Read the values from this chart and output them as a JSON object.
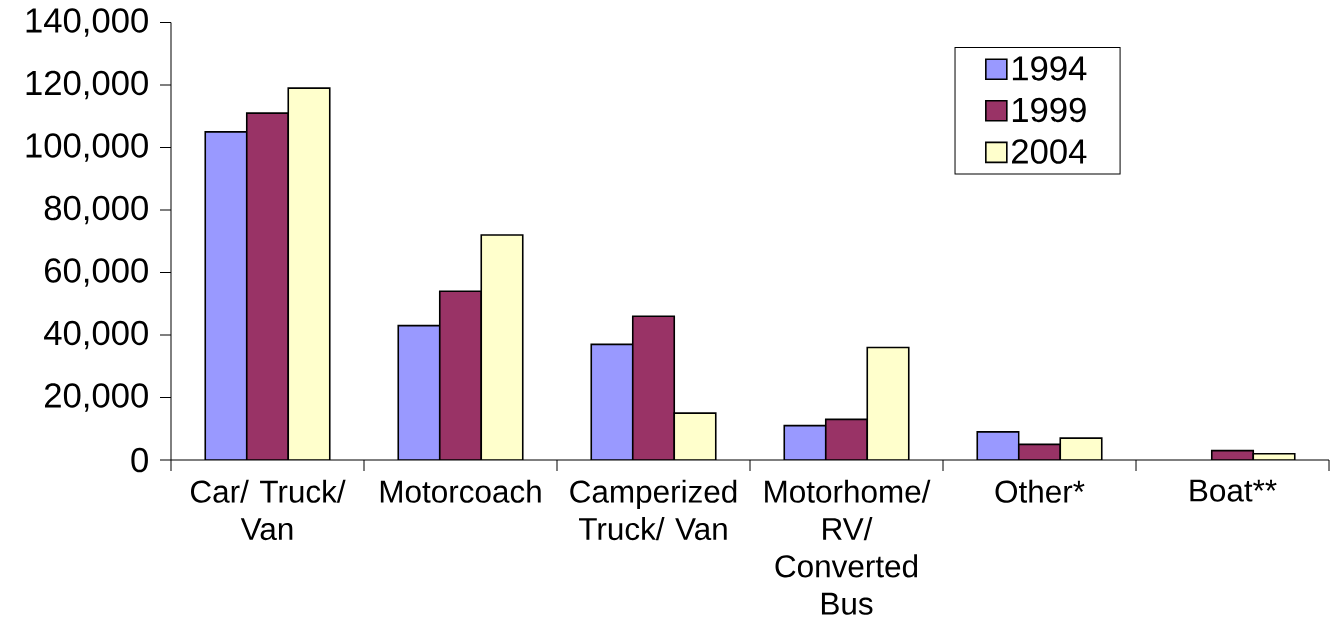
{
  "chart_data": {
    "type": "bar",
    "categories": [
      "Car/ Truck/ Van",
      "Motorcoach",
      "Camperized Truck/ Van",
      "Motorhome/ RV/ Converted Bus",
      "Other*",
      "Boat**"
    ],
    "series": [
      {
        "name": "1994",
        "color": "#9999ff",
        "values": [
          105000,
          43000,
          37000,
          11000,
          9000,
          null
        ]
      },
      {
        "name": "1999",
        "color": "#993366",
        "values": [
          111000,
          54000,
          46000,
          13000,
          5000,
          3000
        ]
      },
      {
        "name": "2004",
        "color": "#ffffcc",
        "values": [
          119000,
          72000,
          15000,
          36000,
          7000,
          2000
        ]
      }
    ],
    "ylim": [
      0,
      140000
    ],
    "yticks": [
      0,
      {
        "value": 20000,
        "label": "20,000"
      },
      {
        "value": 40000,
        "label": "40,000"
      },
      {
        "value": 60000,
        "label": "60,000"
      },
      {
        "value": 80000,
        "label": "80,000"
      },
      {
        "value": 100000,
        "label": "100,000"
      },
      {
        "value": 120000,
        "label": "120,000"
      },
      {
        "value": 140000,
        "label": "140,000"
      }
    ],
    "legend": "top right"
  }
}
